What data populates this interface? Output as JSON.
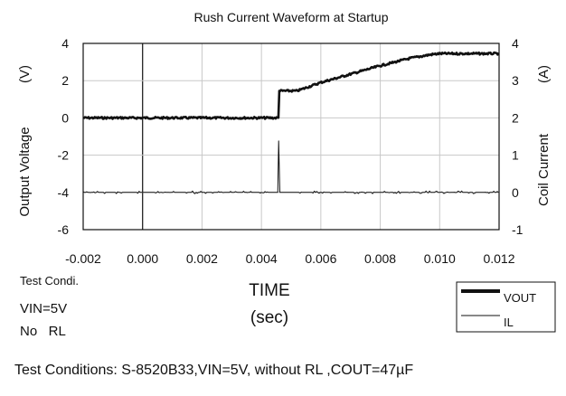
{
  "chart_data": {
    "type": "line",
    "title": "Rush Current Waveform at Startup",
    "xlabel": "TIME",
    "xlabel_unit": "(sec)",
    "ylabel_left": "Output Voltage",
    "ylabel_left_unit": "(V)",
    "ylabel_right": "Coil Current",
    "ylabel_right_unit": "(A)",
    "xlim": [
      -0.002,
      0.012
    ],
    "ylim_left": [
      -6,
      4
    ],
    "ylim_right": [
      -1,
      4
    ],
    "x_ticks": [
      "-0.002",
      "0.000",
      "0.002",
      "0.004",
      "0.006",
      "0.008",
      "0.010",
      "0.012"
    ],
    "y_ticks_left": [
      "4",
      "2",
      "0",
      "-2",
      "-4",
      "-6"
    ],
    "y_ticks_right": [
      "4",
      "3",
      "2",
      "1",
      "0",
      "-1"
    ],
    "grid": true,
    "legend_position": "bottom-right",
    "series": [
      {
        "name": "VOUT",
        "axis": "left",
        "x": [
          -0.002,
          0.0046,
          0.0046,
          0.0052,
          0.006,
          0.007,
          0.008,
          0.009,
          0.0097,
          0.01,
          0.011
        ],
        "y": [
          0.0,
          0.0,
          1.45,
          1.45,
          1.9,
          2.35,
          2.8,
          3.2,
          3.4,
          3.45,
          3.45
        ]
      },
      {
        "name": "IL",
        "axis": "right",
        "x": [
          -0.002,
          0.00455,
          0.00458,
          0.00462,
          0.011
        ],
        "y": [
          0.0,
          0.0,
          1.38,
          0.0,
          0.0
        ]
      }
    ]
  },
  "annotations": {
    "test_condi_heading": "Test Condi.",
    "test_condi_vin": "VIN=5V",
    "test_condi_rl": "No   RL",
    "footer": "Test Conditions: S-8520B33,VIN=5V, without RL ,COUT=47µF"
  }
}
